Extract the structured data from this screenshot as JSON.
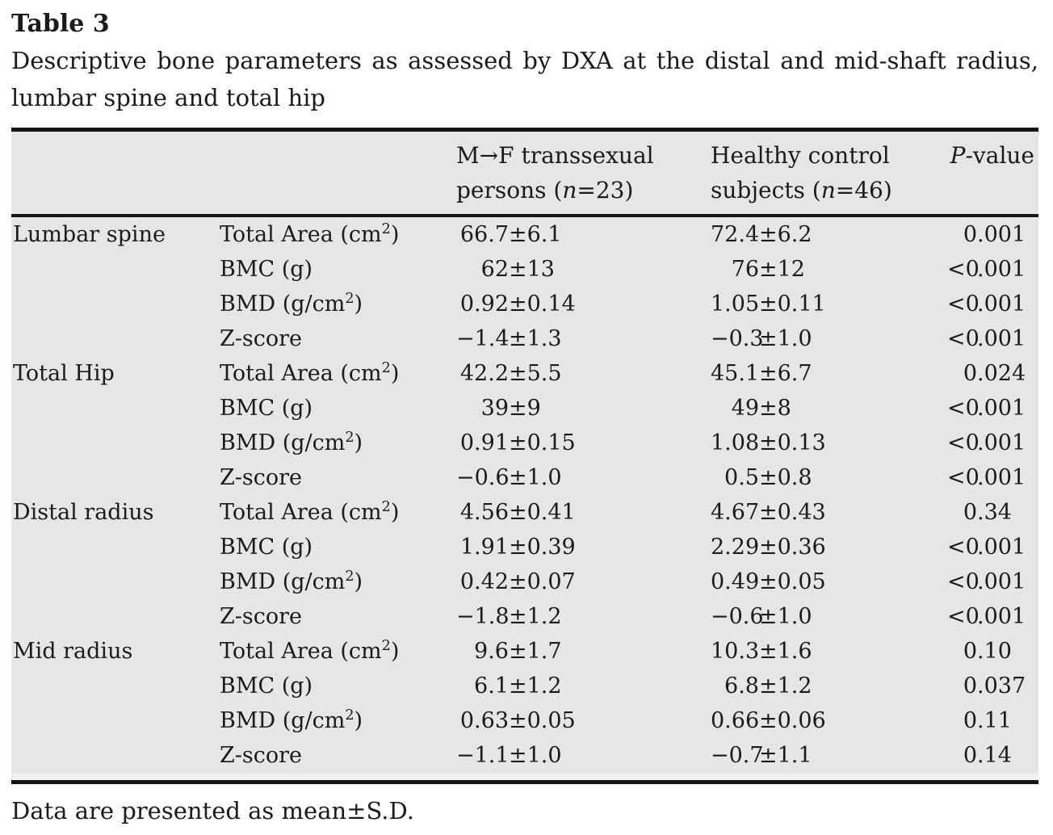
{
  "page": {
    "label": "Table 3",
    "caption_lines": [
      "Descriptive bone parameters as assessed by DXA at the distal and mid-shaft radius,",
      "lumbar spine and total hip"
    ],
    "footnote": "Data are presented as mean±S.D.",
    "colors": {
      "table_background": "#e5e6e8",
      "rule": "#141414",
      "text": "#1b1b1b"
    }
  },
  "header": {
    "group1": {
      "line1": "M→F transsexual",
      "line2_prefix": "persons (",
      "line2_n": "n",
      "line2_suffix": "=23)"
    },
    "group2": {
      "line1": "Healthy control",
      "line2_prefix": "subjects (",
      "line2_n": "n",
      "line2_suffix": "=46)"
    },
    "pvalue": {
      "italic": "P",
      "rest": "-value"
    }
  },
  "table": {
    "sections": [
      {
        "site": "Lumbar spine",
        "rows": [
          {
            "param": "Total Area (cm²)",
            "mf": "66.7±6.1",
            "control": "72.4±6.2",
            "p": "0.001"
          },
          {
            "param": "BMC (g)",
            "mf": "62±13",
            "control": "76±12",
            "p": "<0.001"
          },
          {
            "param": "BMD (g/cm²)",
            "mf": "0.92±0.14",
            "control": "1.05±0.11",
            "p": "<0.001"
          },
          {
            "param": "Z-score",
            "mf": "−1.4±1.3",
            "control": "−0.3±1.0",
            "p": "<0.001"
          }
        ]
      },
      {
        "site": "Total Hip",
        "rows": [
          {
            "param": "Total Area (cm²)",
            "mf": "42.2±5.5",
            "control": "45.1±6.7",
            "p": "0.024"
          },
          {
            "param": "BMC (g)",
            "mf": "39±9",
            "control": "49±8",
            "p": "<0.001"
          },
          {
            "param": "BMD (g/cm²)",
            "mf": "0.91±0.15",
            "control": "1.08±0.13",
            "p": "<0.001"
          },
          {
            "param": "Z-score",
            "mf": "−0.6±1.0",
            "control": "0.5±0.8",
            "p": "<0.001"
          }
        ]
      },
      {
        "site": "Distal radius",
        "rows": [
          {
            "param": "Total Area (cm²)",
            "mf": "4.56±0.41",
            "control": "4.67±0.43",
            "p": "0.34"
          },
          {
            "param": "BMC (g)",
            "mf": "1.91±0.39",
            "control": "2.29±0.36",
            "p": "<0.001"
          },
          {
            "param": "BMD (g/cm²)",
            "mf": "0.42±0.07",
            "control": "0.49±0.05",
            "p": "<0.001"
          },
          {
            "param": "Z-score",
            "mf": "−1.8±1.2",
            "control": "−0.6±1.0",
            "p": "<0.001"
          }
        ]
      },
      {
        "site": "Mid radius",
        "rows": [
          {
            "param": "Total Area (cm²)",
            "mf": "9.6±1.7",
            "control": "10.3±1.6",
            "p": "0.10"
          },
          {
            "param": "BMC (g)",
            "mf": "6.1±1.2",
            "control": "6.8±1.2",
            "p": "0.037"
          },
          {
            "param": "BMD (g/cm²)",
            "mf": "0.63±0.05",
            "control": "0.66±0.06",
            "p": "0.11"
          },
          {
            "param": "Z-score",
            "mf": "−1.1±1.0",
            "control": "−0.7±1.1",
            "p": "0.14"
          }
        ]
      }
    ]
  }
}
